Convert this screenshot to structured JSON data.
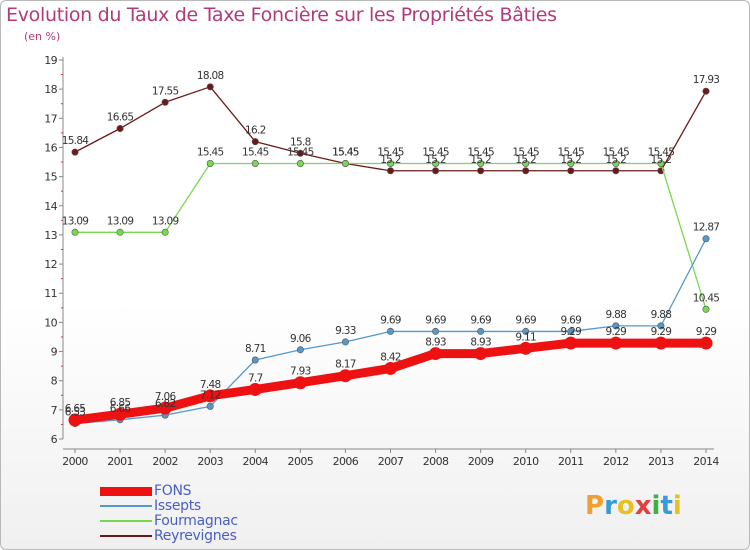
{
  "title": "Evolution du Taux de Taxe Foncière sur les Propriétés Bâties",
  "subtitle": "(en %)",
  "logo": {
    "text": "Proxiti",
    "colors": [
      "#f0a030",
      "#3a9ad9",
      "#e8c020",
      "#e04040",
      "#40b040",
      "#3a9ad9",
      "#e8c020"
    ]
  },
  "chart_data": {
    "type": "line",
    "title": "Evolution du Taux de Taxe Foncière sur les Propriétés Bâties",
    "ylabel": "(en %)",
    "xlabel": "",
    "x": [
      "2000",
      "2001",
      "2002",
      "2003",
      "2004",
      "2005",
      "2006",
      "2007",
      "2008",
      "2009",
      "2010",
      "2011",
      "2012",
      "2013",
      "2014"
    ],
    "ylim": [
      6,
      19
    ],
    "yticks": [
      "6",
      "7",
      "8",
      "9",
      "10",
      "11",
      "12",
      "13",
      "14",
      "15",
      "16",
      "17",
      "18",
      "19"
    ],
    "grid": false,
    "legend_position": "bottom-left",
    "series": [
      {
        "name": "Reyrevignes",
        "color": "#6b1a1a",
        "thick": false,
        "values": [
          15.84,
          16.65,
          17.55,
          18.08,
          16.2,
          15.8,
          15.45,
          15.2,
          15.2,
          15.2,
          15.2,
          15.2,
          15.2,
          15.2,
          17.93
        ],
        "labels": [
          "15.84",
          "16.65",
          "17.55",
          "18.08",
          "16.2",
          "15.8",
          "15.45",
          "15.2",
          "15.2",
          "15.2",
          "15.2",
          "15.2",
          "15.2",
          "15.2",
          "17.93"
        ]
      },
      {
        "name": "Fourmagnac",
        "color": "#77d94f",
        "thick": false,
        "values": [
          13.09,
          13.09,
          13.09,
          15.45,
          15.45,
          15.45,
          15.45,
          15.45,
          15.45,
          15.45,
          15.45,
          15.45,
          15.45,
          15.45,
          10.45
        ],
        "labels": [
          "13.09",
          "13.09",
          "13.09",
          "15.45",
          "15.45",
          "15.45",
          "15.45",
          "15.45",
          "15.45",
          "15.45",
          "15.45",
          "15.45",
          "15.45",
          "15.45",
          "10.45"
        ]
      },
      {
        "name": "Issepts",
        "color": "#5599cc",
        "thick": false,
        "values": [
          6.53,
          6.66,
          6.82,
          7.12,
          8.71,
          9.06,
          9.33,
          9.69,
          9.69,
          9.69,
          9.69,
          9.69,
          9.88,
          9.88,
          12.87
        ],
        "labels": [
          "6.53",
          "6.66",
          "6.82",
          "7.12",
          "8.71",
          "9.06",
          "9.33",
          "9.69",
          "9.69",
          "9.69",
          "9.69",
          "9.69",
          "9.88",
          "9.88",
          "12.87"
        ]
      },
      {
        "name": "FONS",
        "color": "#ee1111",
        "thick": true,
        "values": [
          6.65,
          6.85,
          7.06,
          7.48,
          7.7,
          7.93,
          8.17,
          8.42,
          8.93,
          8.93,
          9.11,
          9.29,
          9.29,
          9.29,
          9.29
        ],
        "labels": [
          "6.65",
          "6.85",
          "7.06",
          "7.48",
          "7.7",
          "7.93",
          "8.17",
          "8.42",
          "8.93",
          "8.93",
          "9.11",
          "9.29",
          "9.29",
          "9.29",
          "9.29"
        ]
      }
    ],
    "legend": [
      "FONS",
      "Issepts",
      "Fourmagnac",
      "Reyrevignes"
    ]
  }
}
